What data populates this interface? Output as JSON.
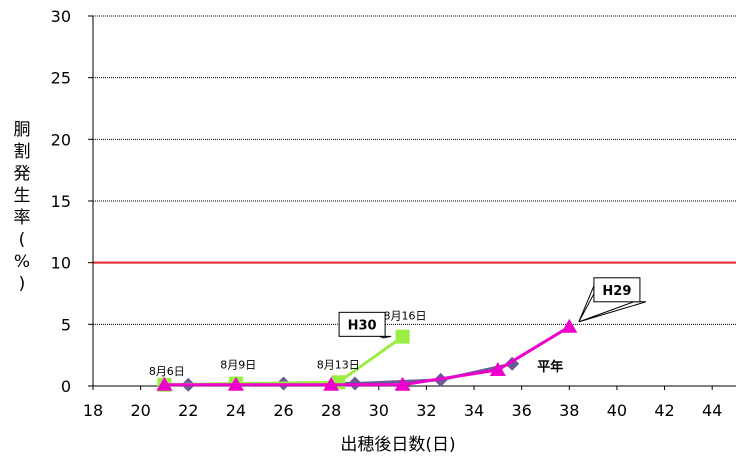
{
  "chart_data": {
    "type": "line",
    "xlabel": "出穂後日数(日)",
    "ylabel": "胴割発生率(%)",
    "xlim": [
      18,
      45
    ],
    "ylim": [
      0,
      30
    ],
    "x_ticks": [
      18,
      20,
      22,
      24,
      26,
      28,
      30,
      32,
      34,
      36,
      38,
      40,
      42,
      44
    ],
    "y_ticks": [
      0,
      5,
      10,
      15,
      20,
      25,
      30
    ],
    "grid": "horizontal",
    "reference_line": {
      "y": 10,
      "color": "#e8202a"
    },
    "series": [
      {
        "name": "平年",
        "color": "#6b5b95",
        "marker": "diamond",
        "points": [
          [
            22,
            0.1
          ],
          [
            26,
            0.2
          ],
          [
            29,
            0.2
          ],
          [
            32.6,
            0.5
          ],
          [
            35.6,
            1.8
          ]
        ]
      },
      {
        "name": "H30",
        "color": "#99ee44",
        "marker": "square",
        "points": [
          [
            21,
            0.1
          ],
          [
            24,
            0.2
          ],
          [
            28.3,
            0.3
          ],
          [
            31,
            4.0
          ]
        ]
      },
      {
        "name": "H29",
        "color": "#ee00cc",
        "marker": "triangle",
        "points": [
          [
            21,
            0.1
          ],
          [
            24,
            0.1
          ],
          [
            28,
            0.1
          ],
          [
            31,
            0.1
          ],
          [
            35,
            1.3
          ],
          [
            38,
            4.8
          ]
        ]
      }
    ],
    "annotations": [
      {
        "text": "8月6日",
        "x": 21.1,
        "y": 0.9
      },
      {
        "text": "8月9日",
        "x": 24.1,
        "y": 1.4
      },
      {
        "text": "8月13日",
        "x": 28.3,
        "y": 1.4
      },
      {
        "text": "8月16日",
        "x": 31.1,
        "y": 5.4
      }
    ],
    "callouts": [
      {
        "text": "H30",
        "x": 29.3,
        "y": 5.0,
        "point_x": 30.2,
        "point_y": 3.9
      },
      {
        "text": "H29",
        "x": 40.0,
        "y": 7.8,
        "point_x": 38.4,
        "point_y": 5.2
      }
    ],
    "series_label": {
      "text": "平年",
      "x": 37.2,
      "y": 1.2
    }
  }
}
